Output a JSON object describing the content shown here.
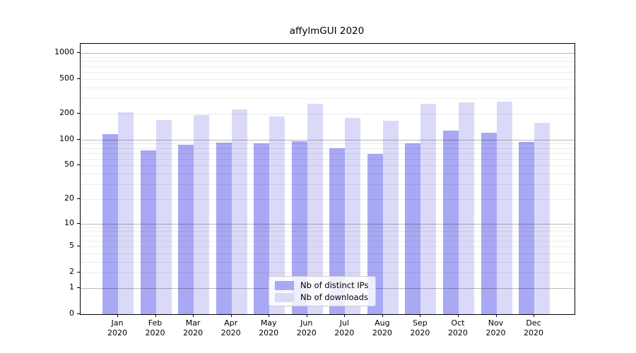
{
  "title": "affylmGUI 2020",
  "legend": {
    "items": [
      {
        "label": "Nb of distinct IPs",
        "color": "#a8a8f4"
      },
      {
        "label": "Nb of downloads",
        "color": "#dadaf8"
      }
    ]
  },
  "chart_data": {
    "type": "bar",
    "title": "affylmGUI 2020",
    "scale": "log1p",
    "categories": [
      "Jan 2020",
      "Feb 2020",
      "Mar 2020",
      "Apr 2020",
      "May 2020",
      "Jun 2020",
      "Jul 2020",
      "Aug 2020",
      "Sep 2020",
      "Oct 2020",
      "Nov 2020",
      "Dec 2020"
    ],
    "series": [
      {
        "name": "Nb of distinct IPs",
        "color": "#a8a8f4",
        "values": [
          115,
          75,
          87,
          92,
          90,
          96,
          80,
          68,
          90,
          128,
          120,
          94
        ]
      },
      {
        "name": "Nb of downloads",
        "color": "#dadaf8",
        "values": [
          208,
          169,
          193,
          224,
          184,
          260,
          179,
          166,
          259,
          272,
          277,
          157
        ]
      }
    ],
    "y_ticks": [
      0,
      1,
      2,
      5,
      10,
      20,
      50,
      100,
      200,
      500,
      1000
    ],
    "ylim": [
      0,
      1280
    ],
    "grid": "horizontal log minor+major, drawn over bars",
    "legend_position": "lower center"
  }
}
